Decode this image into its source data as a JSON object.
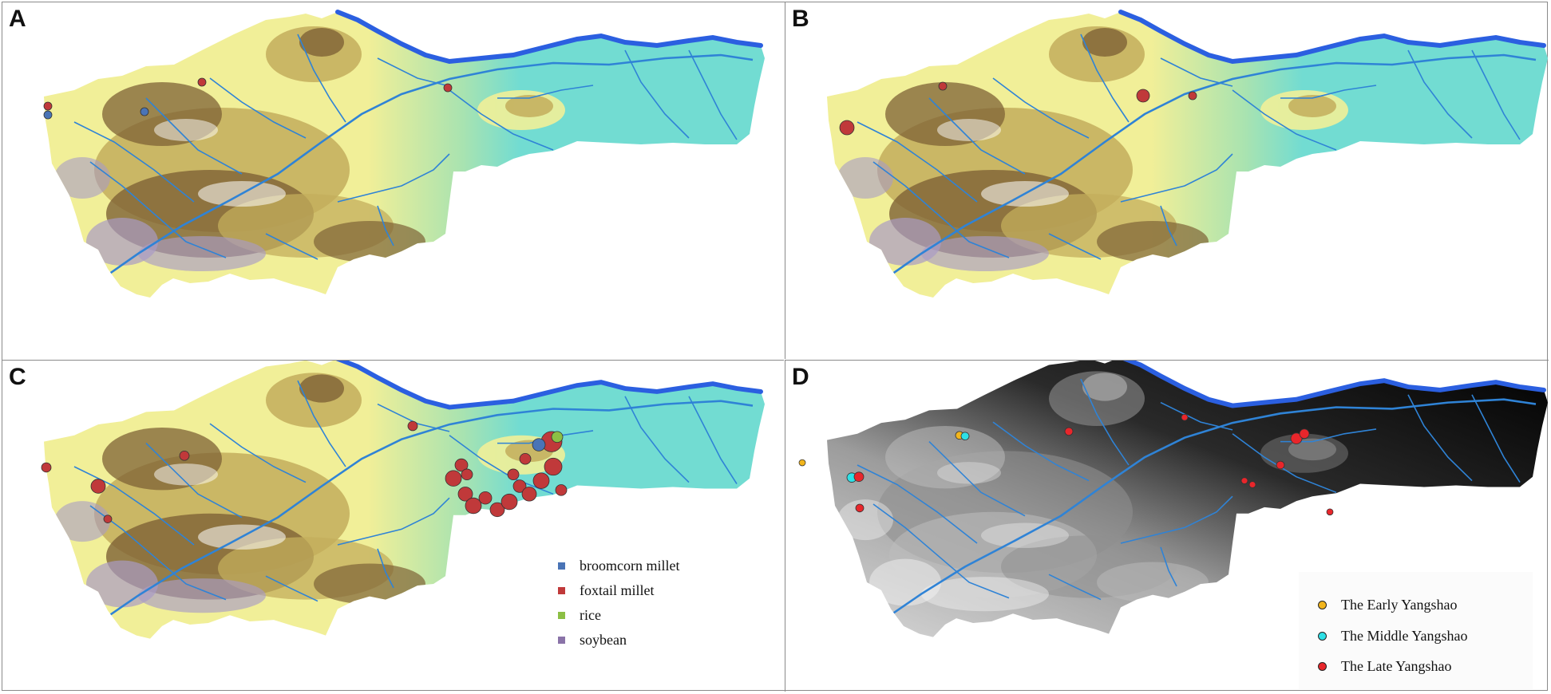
{
  "panels": {
    "a": {
      "label": "A"
    },
    "b": {
      "label": "B"
    },
    "c": {
      "label": "C"
    },
    "d": {
      "label": "D"
    }
  },
  "legend_crops": {
    "broomcorn": {
      "label": "broomcorn millet",
      "color": "#4a74b6"
    },
    "foxtail": {
      "label": "foxtail millet",
      "color": "#c0393a"
    },
    "rice": {
      "label": "rice",
      "color": "#8cbf44"
    },
    "soybean": {
      "label": "soybean",
      "color": "#8a73a8"
    }
  },
  "legend_periods": {
    "early": {
      "label": "The Early Yangshao",
      "color": "#f2b51c"
    },
    "middle": {
      "label": "The Middle Yangshao",
      "color": "#2ee0e6"
    },
    "late": {
      "label": "The Late Yangshao",
      "color": "#e8262b"
    }
  },
  "colors": {
    "lowland": "#72dcd2",
    "plain": "#f1ef98",
    "hill": "#c3ad5c",
    "mountain": "#7e6236",
    "peak": "#a99bc4",
    "river": "#2f83d6",
    "yellow_river": "#2b5fe0"
  }
}
